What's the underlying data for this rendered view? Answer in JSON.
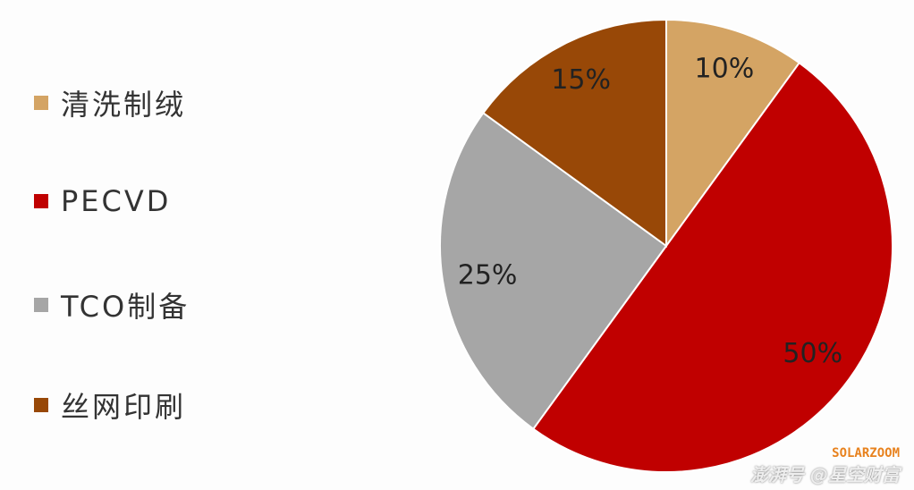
{
  "chart_data": {
    "type": "pie",
    "categories": [
      "清洗制绒",
      "PECVD",
      "TCO制备",
      "丝网印刷"
    ],
    "values": [
      10,
      50,
      25,
      15
    ],
    "labels": [
      "10%",
      "50%",
      "25%",
      "15%"
    ],
    "colors": [
      "#d4a464",
      "#c00000",
      "#a6a6a6",
      "#984807"
    ],
    "start": "top",
    "direction": "clockwise",
    "legend": "left"
  },
  "watermark": {
    "brand": "SOLARZOOM",
    "source": "澎湃号 @星空财富"
  }
}
